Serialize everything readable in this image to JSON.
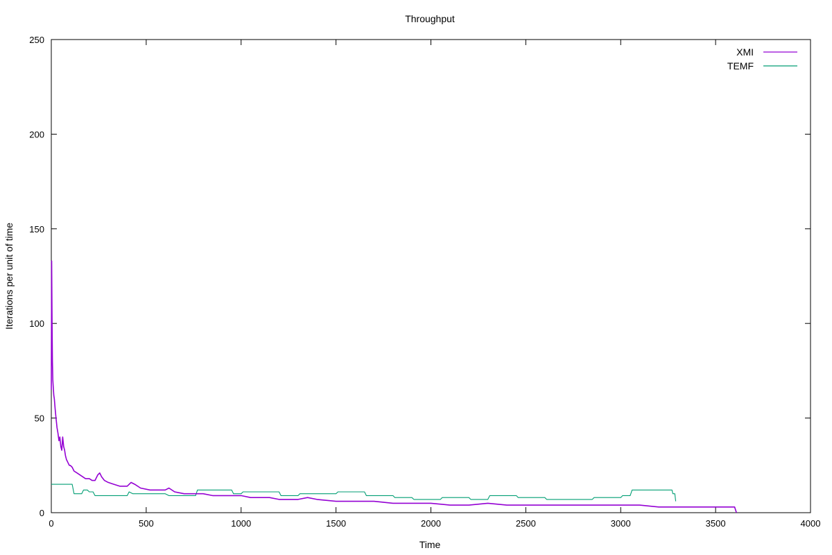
{
  "chart_data": {
    "type": "line",
    "title": "Throughput",
    "xlabel": "Time",
    "ylabel": "Iterations per unit of time",
    "xlim": [
      0,
      4000
    ],
    "ylim": [
      0,
      250
    ],
    "xticks": [
      0,
      500,
      1000,
      1500,
      2000,
      2500,
      3000,
      3500,
      4000
    ],
    "yticks": [
      0,
      50,
      100,
      150,
      200,
      250
    ],
    "grid": false,
    "legend_position": "top-right",
    "series": [
      {
        "name": "XMI",
        "color": "#9400d3",
        "x": [
          0,
          2,
          4,
          6,
          8,
          10,
          13,
          16,
          20,
          25,
          30,
          35,
          40,
          45,
          50,
          55,
          60,
          65,
          70,
          75,
          80,
          85,
          90,
          95,
          100,
          110,
          120,
          135,
          150,
          165,
          180,
          200,
          215,
          230,
          245,
          255,
          265,
          280,
          300,
          330,
          360,
          400,
          420,
          440,
          470,
          520,
          560,
          600,
          620,
          650,
          700,
          760,
          800,
          850,
          900,
          950,
          1000,
          1050,
          1100,
          1150,
          1200,
          1300,
          1350,
          1400,
          1500,
          1550,
          1650,
          1700,
          1800,
          1900,
          2000,
          2100,
          2200,
          2300,
          2400,
          2500,
          2600,
          2700,
          2800,
          2900,
          3000,
          3100,
          3200,
          3300,
          3400,
          3500,
          3550,
          3600,
          3610
        ],
        "values": [
          65,
          133,
          100,
          80,
          70,
          67,
          62,
          60,
          55,
          50,
          45,
          42,
          38,
          40,
          35,
          33,
          40,
          35,
          33,
          30,
          28,
          27,
          26,
          25,
          25,
          24,
          22,
          21,
          20,
          19,
          18,
          18,
          17,
          17,
          20,
          21,
          19,
          17,
          16,
          15,
          14,
          14,
          16,
          15,
          13,
          12,
          12,
          12,
          13,
          11,
          10,
          10,
          10,
          9,
          9,
          9,
          9,
          8,
          8,
          8,
          7,
          7,
          8,
          7,
          6,
          6,
          6,
          6,
          5,
          5,
          5,
          4,
          4,
          5,
          4,
          4,
          4,
          4,
          4,
          4,
          4,
          4,
          3,
          3,
          3,
          3,
          3,
          3,
          0
        ]
      },
      {
        "name": "TEMF",
        "color": "#009e73",
        "x": [
          0,
          110,
          120,
          160,
          170,
          190,
          200,
          220,
          230,
          400,
          410,
          430,
          600,
          620,
          760,
          770,
          950,
          960,
          1000,
          1010,
          1200,
          1210,
          1300,
          1310,
          1500,
          1510,
          1650,
          1660,
          1800,
          1810,
          1900,
          1910,
          2050,
          2060,
          2200,
          2210,
          2300,
          2310,
          2450,
          2460,
          2600,
          2610,
          2850,
          2860,
          3000,
          3010,
          3050,
          3060,
          3270,
          3275,
          3285,
          3290
        ],
        "values": [
          15,
          15,
          10,
          10,
          12,
          12,
          11,
          11,
          9,
          9,
          11,
          10,
          10,
          9,
          9,
          12,
          12,
          10,
          10,
          11,
          11,
          9,
          9,
          10,
          10,
          11,
          11,
          9,
          9,
          8,
          8,
          7,
          7,
          8,
          8,
          7,
          7,
          9,
          9,
          8,
          8,
          7,
          7,
          8,
          8,
          9,
          9,
          12,
          12,
          10,
          10,
          6
        ]
      }
    ]
  }
}
